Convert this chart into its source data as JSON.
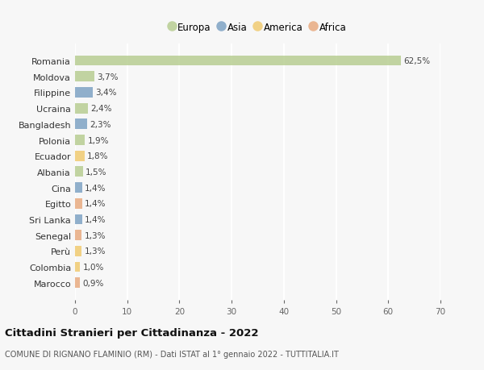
{
  "countries": [
    "Romania",
    "Moldova",
    "Filippine",
    "Ucraina",
    "Bangladesh",
    "Polonia",
    "Ecuador",
    "Albania",
    "Cina",
    "Egitto",
    "Sri Lanka",
    "Senegal",
    "Perù",
    "Colombia",
    "Marocco"
  ],
  "values": [
    62.5,
    3.7,
    3.4,
    2.4,
    2.3,
    1.9,
    1.8,
    1.5,
    1.4,
    1.4,
    1.4,
    1.3,
    1.3,
    1.0,
    0.9
  ],
  "labels": [
    "62,5%",
    "3,7%",
    "3,4%",
    "2,4%",
    "2,3%",
    "1,9%",
    "1,8%",
    "1,5%",
    "1,4%",
    "1,4%",
    "1,4%",
    "1,3%",
    "1,3%",
    "1,0%",
    "0,9%"
  ],
  "continents": [
    "Europa",
    "Europa",
    "Asia",
    "Europa",
    "Asia",
    "Europa",
    "America",
    "Europa",
    "Asia",
    "Africa",
    "Asia",
    "Africa",
    "America",
    "America",
    "Africa"
  ],
  "continent_colors": {
    "Europa": "#b5cc8e",
    "Asia": "#7a9fc2",
    "America": "#f0c96c",
    "Africa": "#e8a87c"
  },
  "legend_order": [
    "Europa",
    "Asia",
    "America",
    "Africa"
  ],
  "title": "Cittadini Stranieri per Cittadinanza - 2022",
  "subtitle": "COMUNE DI RIGNANO FLAMINIO (RM) - Dati ISTAT al 1° gennaio 2022 - TUTTITALIA.IT",
  "xlim": [
    0,
    70
  ],
  "xticks": [
    0,
    10,
    20,
    30,
    40,
    50,
    60,
    70
  ],
  "background_color": "#f7f7f7",
  "grid_color": "#ffffff",
  "bar_alpha": 0.82
}
